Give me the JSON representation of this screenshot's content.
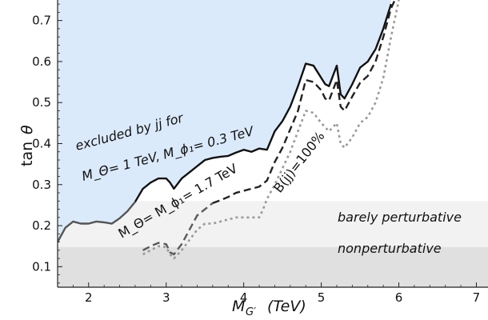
{
  "chart_data": {
    "type": "line",
    "xlabel": "M_{G'} (TeV)",
    "ylabel": "tan θ",
    "xlim": [
      1.6,
      7.15
    ],
    "ylim": [
      0.05,
      0.75
    ],
    "x_ticks": [
      2,
      3,
      4,
      5,
      6,
      7
    ],
    "y_ticks": [
      0.1,
      0.2,
      0.3,
      0.4,
      0.5,
      0.6,
      0.7
    ],
    "colors": {
      "excluded_fill": "#dbeafa",
      "barely_band": "#f2f2f2",
      "nonpert_band": "#e0e0e0",
      "solid": "#111111",
      "solid_low": "#555555",
      "dashed": "#222222",
      "dashed_low": "#5a5a5a",
      "dotted": "#9a9a9a"
    },
    "bands": [
      {
        "name": "barely perturbative",
        "y_range": [
          0.148,
          0.26
        ]
      },
      {
        "name": "nonperturbative",
        "y_range": [
          0.05,
          0.148
        ]
      }
    ],
    "series": [
      {
        "style": "solid",
        "x": [
          1.6,
          1.7,
          1.8,
          1.9,
          2.0,
          2.1,
          2.2,
          2.3,
          2.4,
          2.5,
          2.6,
          2.7,
          2.8,
          2.9,
          3.0,
          3.05,
          3.1,
          3.2,
          3.3,
          3.4,
          3.5,
          3.6,
          3.7,
          3.8,
          3.9,
          4.0,
          4.1,
          4.2,
          4.3,
          4.4,
          4.5,
          4.6,
          4.7,
          4.8,
          4.9,
          5.0,
          5.05,
          5.1,
          5.2,
          5.25,
          5.3,
          5.4,
          5.5,
          5.6,
          5.7,
          5.8,
          5.9
        ],
        "y": [
          0.16,
          0.195,
          0.21,
          0.205,
          0.205,
          0.21,
          0.208,
          0.205,
          0.218,
          0.235,
          0.258,
          0.29,
          0.305,
          0.315,
          0.315,
          0.305,
          0.29,
          0.315,
          0.33,
          0.345,
          0.36,
          0.365,
          0.368,
          0.37,
          0.378,
          0.385,
          0.38,
          0.388,
          0.385,
          0.43,
          0.455,
          0.49,
          0.54,
          0.595,
          0.59,
          0.56,
          0.545,
          0.54,
          0.59,
          0.52,
          0.51,
          0.545,
          0.585,
          0.6,
          0.63,
          0.68,
          0.74
        ]
      },
      {
        "style": "dashed",
        "x": [
          2.7,
          2.75,
          2.8,
          2.9,
          3.0,
          3.05,
          3.1,
          3.2,
          3.3,
          3.4,
          3.5,
          3.6,
          3.7,
          3.8,
          3.9,
          4.0,
          4.1,
          4.2,
          4.3,
          4.4,
          4.5,
          4.6,
          4.7,
          4.8,
          4.9,
          5.0,
          5.05,
          5.1,
          5.2,
          5.25,
          5.3,
          5.4,
          5.5,
          5.6,
          5.7,
          5.8,
          5.9,
          5.95
        ],
        "y": [
          0.14,
          0.145,
          0.15,
          0.158,
          0.155,
          0.135,
          0.13,
          0.155,
          0.19,
          0.225,
          0.24,
          0.255,
          0.262,
          0.27,
          0.28,
          0.285,
          0.29,
          0.295,
          0.31,
          0.355,
          0.39,
          0.435,
          0.48,
          0.555,
          0.55,
          0.53,
          0.51,
          0.505,
          0.555,
          0.49,
          0.48,
          0.515,
          0.548,
          0.565,
          0.6,
          0.66,
          0.73,
          0.75
        ]
      },
      {
        "style": "dotted",
        "x": [
          2.7,
          2.8,
          2.9,
          3.0,
          3.05,
          3.1,
          3.2,
          3.3,
          3.4,
          3.5,
          3.6,
          3.7,
          3.8,
          3.9,
          4.0,
          4.1,
          4.2,
          4.25,
          4.3,
          4.4,
          4.5,
          4.6,
          4.7,
          4.8,
          4.9,
          5.0,
          5.1,
          5.2,
          5.25,
          5.3,
          5.4,
          5.5,
          5.6,
          5.7,
          5.8,
          5.9,
          6.0
        ],
        "y": [
          0.13,
          0.14,
          0.15,
          0.148,
          0.13,
          0.12,
          0.14,
          0.165,
          0.19,
          0.205,
          0.205,
          0.21,
          0.215,
          0.22,
          0.22,
          0.22,
          0.22,
          0.24,
          0.265,
          0.3,
          0.34,
          0.38,
          0.43,
          0.48,
          0.475,
          0.45,
          0.43,
          0.45,
          0.4,
          0.39,
          0.415,
          0.45,
          0.465,
          0.5,
          0.56,
          0.66,
          0.75
        ]
      }
    ],
    "annotations": {
      "excluded_line1": "excluded by jj  for",
      "excluded_line2": "M_Θ= 1 TeV, M_ϕ₁= 0.3 TeV",
      "dashed_label": "M_Θ= M_ϕ₁= 1.7 TeV",
      "dotted_label": "B(jj)=100%",
      "barely": "barely perturbative",
      "nonpert": "nonperturbative"
    },
    "grid": false
  }
}
